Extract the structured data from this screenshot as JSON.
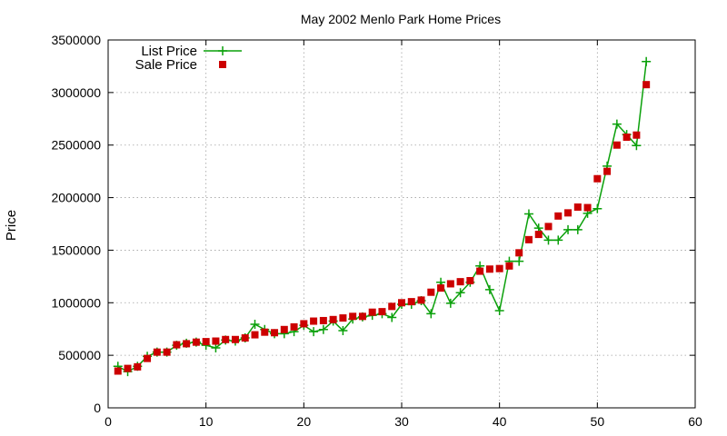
{
  "chart_data": {
    "type": "line",
    "title": "May 2002 Menlo Park Home Prices",
    "xlabel": "",
    "ylabel": "Price",
    "xlim": [
      0,
      60
    ],
    "ylim": [
      0,
      3500000
    ],
    "x_ticks": [
      "0",
      "10",
      "20",
      "30",
      "40",
      "50",
      "60"
    ],
    "y_ticks": [
      "0",
      "500000",
      "1000000",
      "1500000",
      "2000000",
      "2500000",
      "3000000",
      "3500000"
    ],
    "grid": true,
    "legend_position": "top-left",
    "x": [
      1,
      2,
      3,
      4,
      5,
      6,
      7,
      8,
      9,
      10,
      11,
      12,
      13,
      14,
      15,
      16,
      17,
      18,
      19,
      20,
      21,
      22,
      23,
      24,
      25,
      26,
      27,
      28,
      29,
      30,
      31,
      32,
      33,
      34,
      35,
      36,
      37,
      38,
      39,
      40,
      41,
      42,
      43,
      44,
      45,
      46,
      47,
      48,
      49,
      50,
      51,
      52,
      53,
      54,
      55
    ],
    "series": [
      {
        "name": "List Price",
        "style": "line-plus",
        "color": "#0aa00a",
        "values": [
          395000,
          345000,
          395000,
          490000,
          530000,
          530000,
          595000,
          615000,
          625000,
          595000,
          570000,
          645000,
          635000,
          665000,
          795000,
          745000,
          705000,
          705000,
          725000,
          785000,
          725000,
          745000,
          825000,
          735000,
          845000,
          865000,
          880000,
          895000,
          860000,
          985000,
          985000,
          1020000,
          895000,
          1195000,
          995000,
          1095000,
          1195000,
          1350000,
          1125000,
          925000,
          1395000,
          1395000,
          1845000,
          1710000,
          1595000,
          1595000,
          1695000,
          1695000,
          1850000,
          1895000,
          2300000,
          2700000,
          2600000,
          2495000,
          3295000
        ]
      },
      {
        "name": "Sale Price",
        "style": "square",
        "color": "#cc0000",
        "values": [
          350000,
          375000,
          390000,
          470000,
          530000,
          530000,
          600000,
          610000,
          625000,
          630000,
          635000,
          650000,
          650000,
          665000,
          695000,
          720000,
          715000,
          745000,
          770000,
          800000,
          825000,
          830000,
          840000,
          855000,
          870000,
          870000,
          910000,
          915000,
          965000,
          1000000,
          1010000,
          1025000,
          1100000,
          1140000,
          1180000,
          1200000,
          1210000,
          1300000,
          1320000,
          1325000,
          1350000,
          1475000,
          1600000,
          1650000,
          1725000,
          1825000,
          1855000,
          1910000,
          1905000,
          2180000,
          2250000,
          2500000,
          2575000,
          2595000,
          3075000
        ]
      }
    ]
  }
}
